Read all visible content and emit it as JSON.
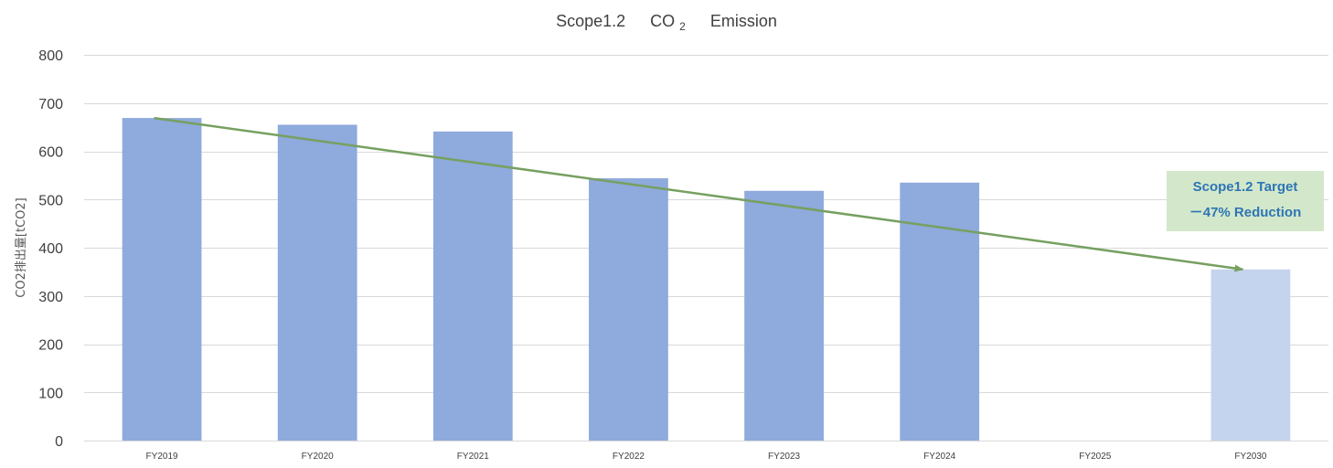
{
  "chart_data": {
    "type": "bar",
    "title": "Scope1.2 CO2 Emission",
    "title_parts": {
      "pre": "Scope1.2",
      "co": "CO",
      "sub": "2",
      "post": "Emission"
    },
    "ylabel": "CO2排出量[tCO2]",
    "xlabel": "",
    "categories": [
      "FY2019",
      "FY2020",
      "FY2021",
      "FY2022",
      "FY2023",
      "FY2024",
      "FY2025",
      "FY2030"
    ],
    "values": [
      669,
      655,
      641,
      544,
      518,
      535,
      null,
      355
    ],
    "target_index": 7,
    "ylim": [
      0,
      800
    ],
    "yticks": [
      0,
      100,
      200,
      300,
      400,
      500,
      600,
      700,
      800
    ],
    "grid": true,
    "legend": "none",
    "colors": {
      "bar": "#8FAADC",
      "target_bar": "#C5D4EE",
      "arrow": "#76A060",
      "grid": "#D9D9D9",
      "annotation_fill": "#D3E8CA",
      "annotation_text": "#2E75B6"
    },
    "trend_arrow": {
      "from": {
        "category": "FY2019",
        "value": 669
      },
      "to": {
        "category": "FY2030",
        "value": 355
      }
    },
    "annotation": {
      "line1": "Scope1.2 Target",
      "line2": "－47% Reduction"
    }
  }
}
